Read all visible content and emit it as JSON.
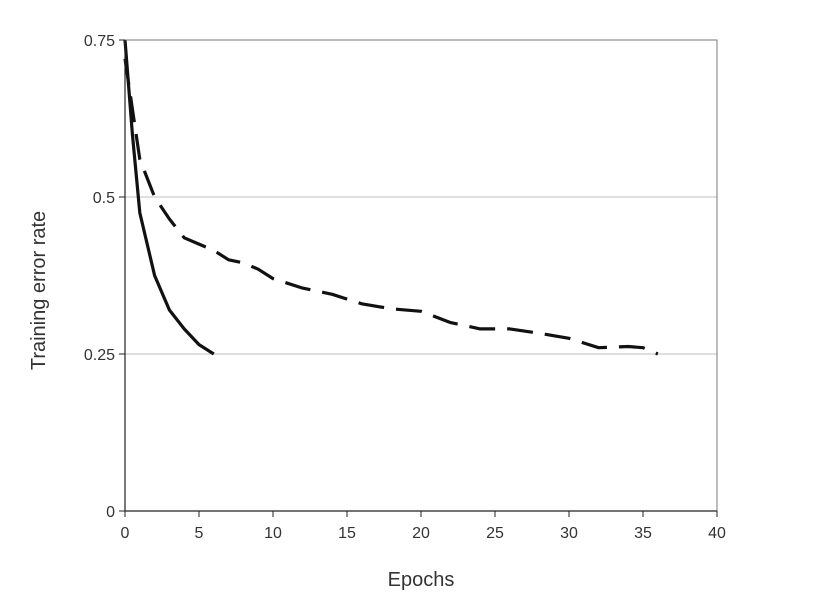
{
  "chart_data": {
    "type": "line",
    "xlabel": "Epochs",
    "ylabel": "Training error rate",
    "xlim": [
      0,
      40
    ],
    "ylim": [
      0,
      0.75
    ],
    "x_ticks": [
      0,
      5,
      10,
      15,
      20,
      25,
      30,
      35,
      40
    ],
    "y_ticks": [
      0,
      0.25,
      0.5,
      0.75
    ],
    "x_tick_labels": [
      "0",
      "5",
      "10",
      "15",
      "20",
      "25",
      "30",
      "35",
      "40"
    ],
    "y_tick_labels": [
      "0",
      "0.25",
      "0.5",
      "0.75"
    ],
    "grid": "horizontal",
    "legend": "none",
    "series": [
      {
        "style": "solid",
        "color": "#111111",
        "x": [
          0,
          0.5,
          1,
          2,
          3,
          4,
          5,
          6
        ],
        "y": [
          0.75,
          0.6,
          0.475,
          0.375,
          0.32,
          0.29,
          0.265,
          0.25
        ]
      },
      {
        "style": "dashed",
        "color": "#111111",
        "x": [
          0,
          1,
          2,
          3,
          4,
          5,
          6,
          7,
          8,
          9,
          10,
          12,
          14,
          16,
          18,
          20,
          22,
          24,
          26,
          28,
          30,
          32,
          34,
          35,
          36
        ],
        "y": [
          0.72,
          0.56,
          0.5,
          0.465,
          0.435,
          0.425,
          0.415,
          0.4,
          0.395,
          0.385,
          0.37,
          0.355,
          0.345,
          0.33,
          0.322,
          0.318,
          0.3,
          0.29,
          0.29,
          0.283,
          0.275,
          0.26,
          0.262,
          0.26,
          0.25
        ]
      }
    ]
  }
}
